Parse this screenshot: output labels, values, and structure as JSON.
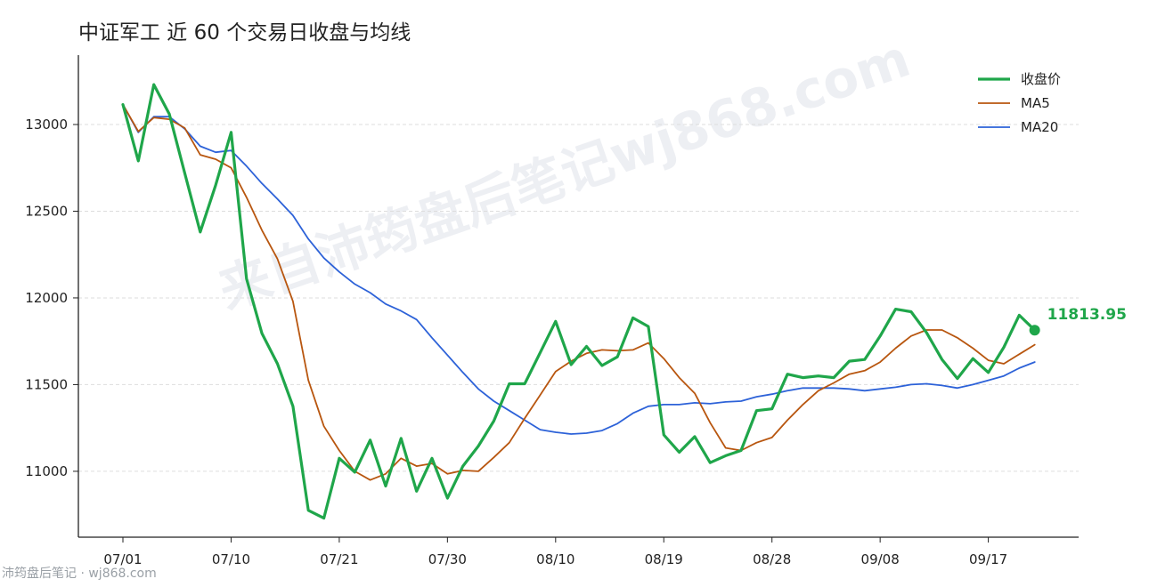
{
  "chart_data": {
    "type": "line",
    "title": "中证军工 近 60 个交易日收盘与均线",
    "xlabel": "",
    "ylabel": "",
    "ylim": [
      10620,
      13400
    ],
    "yticks": [
      11000,
      11500,
      12000,
      12500,
      13000
    ],
    "xtick_labels": [
      "07/01",
      "07/10",
      "07/21",
      "07/30",
      "08/10",
      "08/19",
      "08/28",
      "09/08",
      "09/17"
    ],
    "xtick_indices": [
      0,
      7,
      14,
      21,
      28,
      35,
      42,
      49,
      56
    ],
    "grid": "horizontal-dashed",
    "legend_position": "top-right",
    "last_value_label": "11813.95",
    "series": [
      {
        "name": "收盘价",
        "color": "#1fa64a",
        "values": [
          13115,
          12790,
          13230,
          13060,
          12720,
          12380,
          12650,
          12955,
          12110,
          11795,
          11620,
          11375,
          10775,
          10730,
          11075,
          10995,
          11180,
          10915,
          11190,
          10885,
          11075,
          10845,
          11030,
          11145,
          11290,
          11505,
          11505,
          11685,
          11865,
          11615,
          11720,
          11610,
          11660,
          11885,
          11835,
          11210,
          11110,
          11200,
          11050,
          11090,
          11120,
          11350,
          11360,
          11560,
          11540,
          11550,
          11540,
          11635,
          11645,
          11780,
          11935,
          11920,
          11800,
          11645,
          11535,
          11650,
          11570,
          11715,
          11900,
          11813.95
        ]
      },
      {
        "name": "MA5",
        "color": "#b8560f",
        "values": [
          13115,
          12960,
          13040,
          13030,
          12980,
          12825,
          12800,
          12750,
          12580,
          12390,
          12225,
          11980,
          11525,
          11260,
          11120,
          11000,
          10950,
          10985,
          11075,
          11030,
          11045,
          10985,
          11005,
          11000,
          11080,
          11165,
          11305,
          11440,
          11575,
          11635,
          11680,
          11700,
          11695,
          11700,
          11740,
          11650,
          11540,
          11450,
          11280,
          11135,
          11120,
          11165,
          11195,
          11295,
          11385,
          11465,
          11510,
          11560,
          11580,
          11630,
          11710,
          11780,
          11815,
          11815,
          11770,
          11710,
          11640,
          11620,
          11675,
          11730
        ]
      },
      {
        "name": "MA20",
        "color": "#2d62d8",
        "values": [
          13115,
          12955,
          13045,
          13045,
          12975,
          12875,
          12840,
          12850,
          12760,
          12660,
          12570,
          12475,
          12340,
          12230,
          12150,
          12080,
          12030,
          11965,
          11925,
          11875,
          11770,
          11670,
          11570,
          11475,
          11405,
          11350,
          11295,
          11240,
          11225,
          11215,
          11220,
          11235,
          11275,
          11335,
          11375,
          11385,
          11385,
          11395,
          11390,
          11400,
          11405,
          11430,
          11445,
          11465,
          11480,
          11480,
          11480,
          11475,
          11465,
          11475,
          11485,
          11500,
          11505,
          11495,
          11480,
          11500,
          11525,
          11550,
          11595,
          11630
        ]
      }
    ]
  },
  "watermark": "来自沛筠盘后笔记wj868.com",
  "footer": "沛筠盘后笔记 · wj868.com"
}
